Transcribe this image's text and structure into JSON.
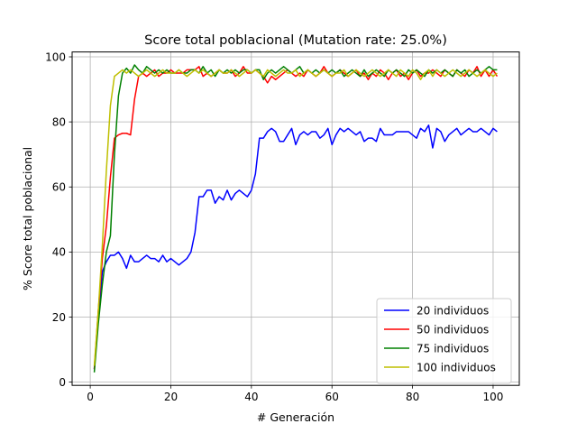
{
  "chart_data": {
    "type": "line",
    "title": "Score total poblacional (Mutation rate: 25.0%)",
    "xlabel": "# Generación",
    "ylabel": "% Score total poblacional",
    "xlim": [
      -4.5,
      106.5
    ],
    "ylim": [
      -1.0,
      101.5
    ],
    "xticks": [
      0,
      20,
      40,
      60,
      80,
      100
    ],
    "yticks": [
      0,
      20,
      40,
      60,
      80,
      100
    ],
    "grid": true,
    "legend_position": "lower-right",
    "x_start": 1,
    "series": [
      {
        "name": "20 individuos",
        "color": "#0000ff",
        "values": [
          4,
          20,
          34,
          37,
          39,
          39,
          40,
          38,
          35,
          39,
          37,
          37,
          38,
          39,
          38,
          38,
          37,
          39,
          37,
          38,
          37,
          36,
          37,
          38,
          40,
          46,
          57,
          57,
          59,
          59,
          55,
          57,
          56,
          59,
          56,
          58,
          59,
          58,
          57,
          59,
          64,
          75,
          75,
          77,
          78,
          77,
          74,
          74,
          76,
          78,
          73,
          76,
          77,
          76,
          77,
          77,
          75,
          76,
          78,
          73,
          76,
          78,
          77,
          78,
          77,
          76,
          77,
          74,
          75,
          75,
          74,
          78,
          76,
          76,
          76,
          77,
          77,
          77,
          77,
          76,
          75,
          78,
          77,
          79,
          72,
          78,
          77,
          74,
          76,
          77,
          78,
          76,
          77,
          78,
          77,
          77,
          78,
          77,
          76,
          78,
          77
        ]
      },
      {
        "name": "50 individuos",
        "color": "#ff0000",
        "values": [
          4,
          22,
          38,
          48,
          63,
          75,
          76,
          76.5,
          76.5,
          76,
          87,
          94,
          95,
          94,
          95,
          96,
          94,
          95,
          95,
          96,
          95,
          95,
          95,
          96,
          96,
          96,
          97,
          94,
          95,
          94,
          95,
          96,
          95,
          95,
          96,
          94,
          95,
          97,
          95,
          95,
          96,
          95,
          94,
          92,
          94,
          93,
          94,
          95,
          96,
          95,
          94,
          95,
          94,
          96,
          95,
          94,
          95,
          97,
          95,
          94,
          95,
          96,
          95,
          94,
          95,
          96,
          94,
          95,
          93,
          95,
          94,
          96,
          95,
          93,
          95,
          96,
          94,
          95,
          93,
          95,
          96,
          94,
          95,
          95,
          96,
          95,
          94,
          96,
          95,
          94,
          96,
          95,
          94,
          96,
          95,
          97,
          94,
          96,
          94,
          96,
          94
        ]
      },
      {
        "name": "75 individuos",
        "color": "#008000",
        "values": [
          3,
          18,
          30,
          40,
          45,
          70,
          88,
          95,
          96.5,
          95,
          97.5,
          96,
          95,
          97,
          96,
          95,
          96,
          95,
          96,
          95,
          95,
          96,
          95,
          95,
          96,
          96,
          95,
          97,
          95,
          96,
          94,
          96,
          95,
          96,
          95,
          96,
          95,
          96,
          96,
          95,
          96,
          96,
          93,
          95,
          96,
          95,
          96,
          97,
          96,
          95,
          96,
          97,
          95,
          96,
          95,
          96,
          95,
          96,
          95,
          96,
          95,
          96,
          94,
          95,
          96,
          95,
          94,
          96,
          94,
          95,
          96,
          95,
          94,
          96,
          95,
          96,
          95,
          94,
          96,
          95,
          96,
          95,
          94,
          96,
          95,
          96,
          95,
          96,
          95,
          94,
          96,
          95,
          96,
          94,
          95,
          96,
          95,
          96,
          97,
          96,
          96
        ]
      },
      {
        "name": "100 individuos",
        "color": "#bfbf00",
        "values": [
          5,
          22,
          42,
          65,
          85,
          94,
          95,
          96,
          95,
          96,
          95,
          94,
          95,
          96,
          95,
          94,
          95,
          96,
          95,
          95,
          95,
          96,
          95,
          94,
          95,
          96,
          95,
          96,
          95,
          94,
          95,
          96,
          95,
          95,
          96,
          95,
          94,
          95,
          96,
          95,
          96,
          95,
          94,
          96,
          95,
          94,
          95,
          96,
          95,
          95,
          96,
          94,
          95,
          96,
          95,
          94,
          95,
          96,
          95,
          94,
          95,
          95,
          96,
          94,
          95,
          96,
          95,
          94,
          95,
          96,
          95,
          94,
          95,
          96,
          95,
          94,
          96,
          95,
          94,
          96,
          95,
          93,
          95,
          96,
          94,
          96,
          95,
          94,
          95,
          96,
          95,
          94,
          95,
          96,
          95,
          94,
          95,
          96,
          95,
          94,
          95
        ]
      }
    ]
  }
}
